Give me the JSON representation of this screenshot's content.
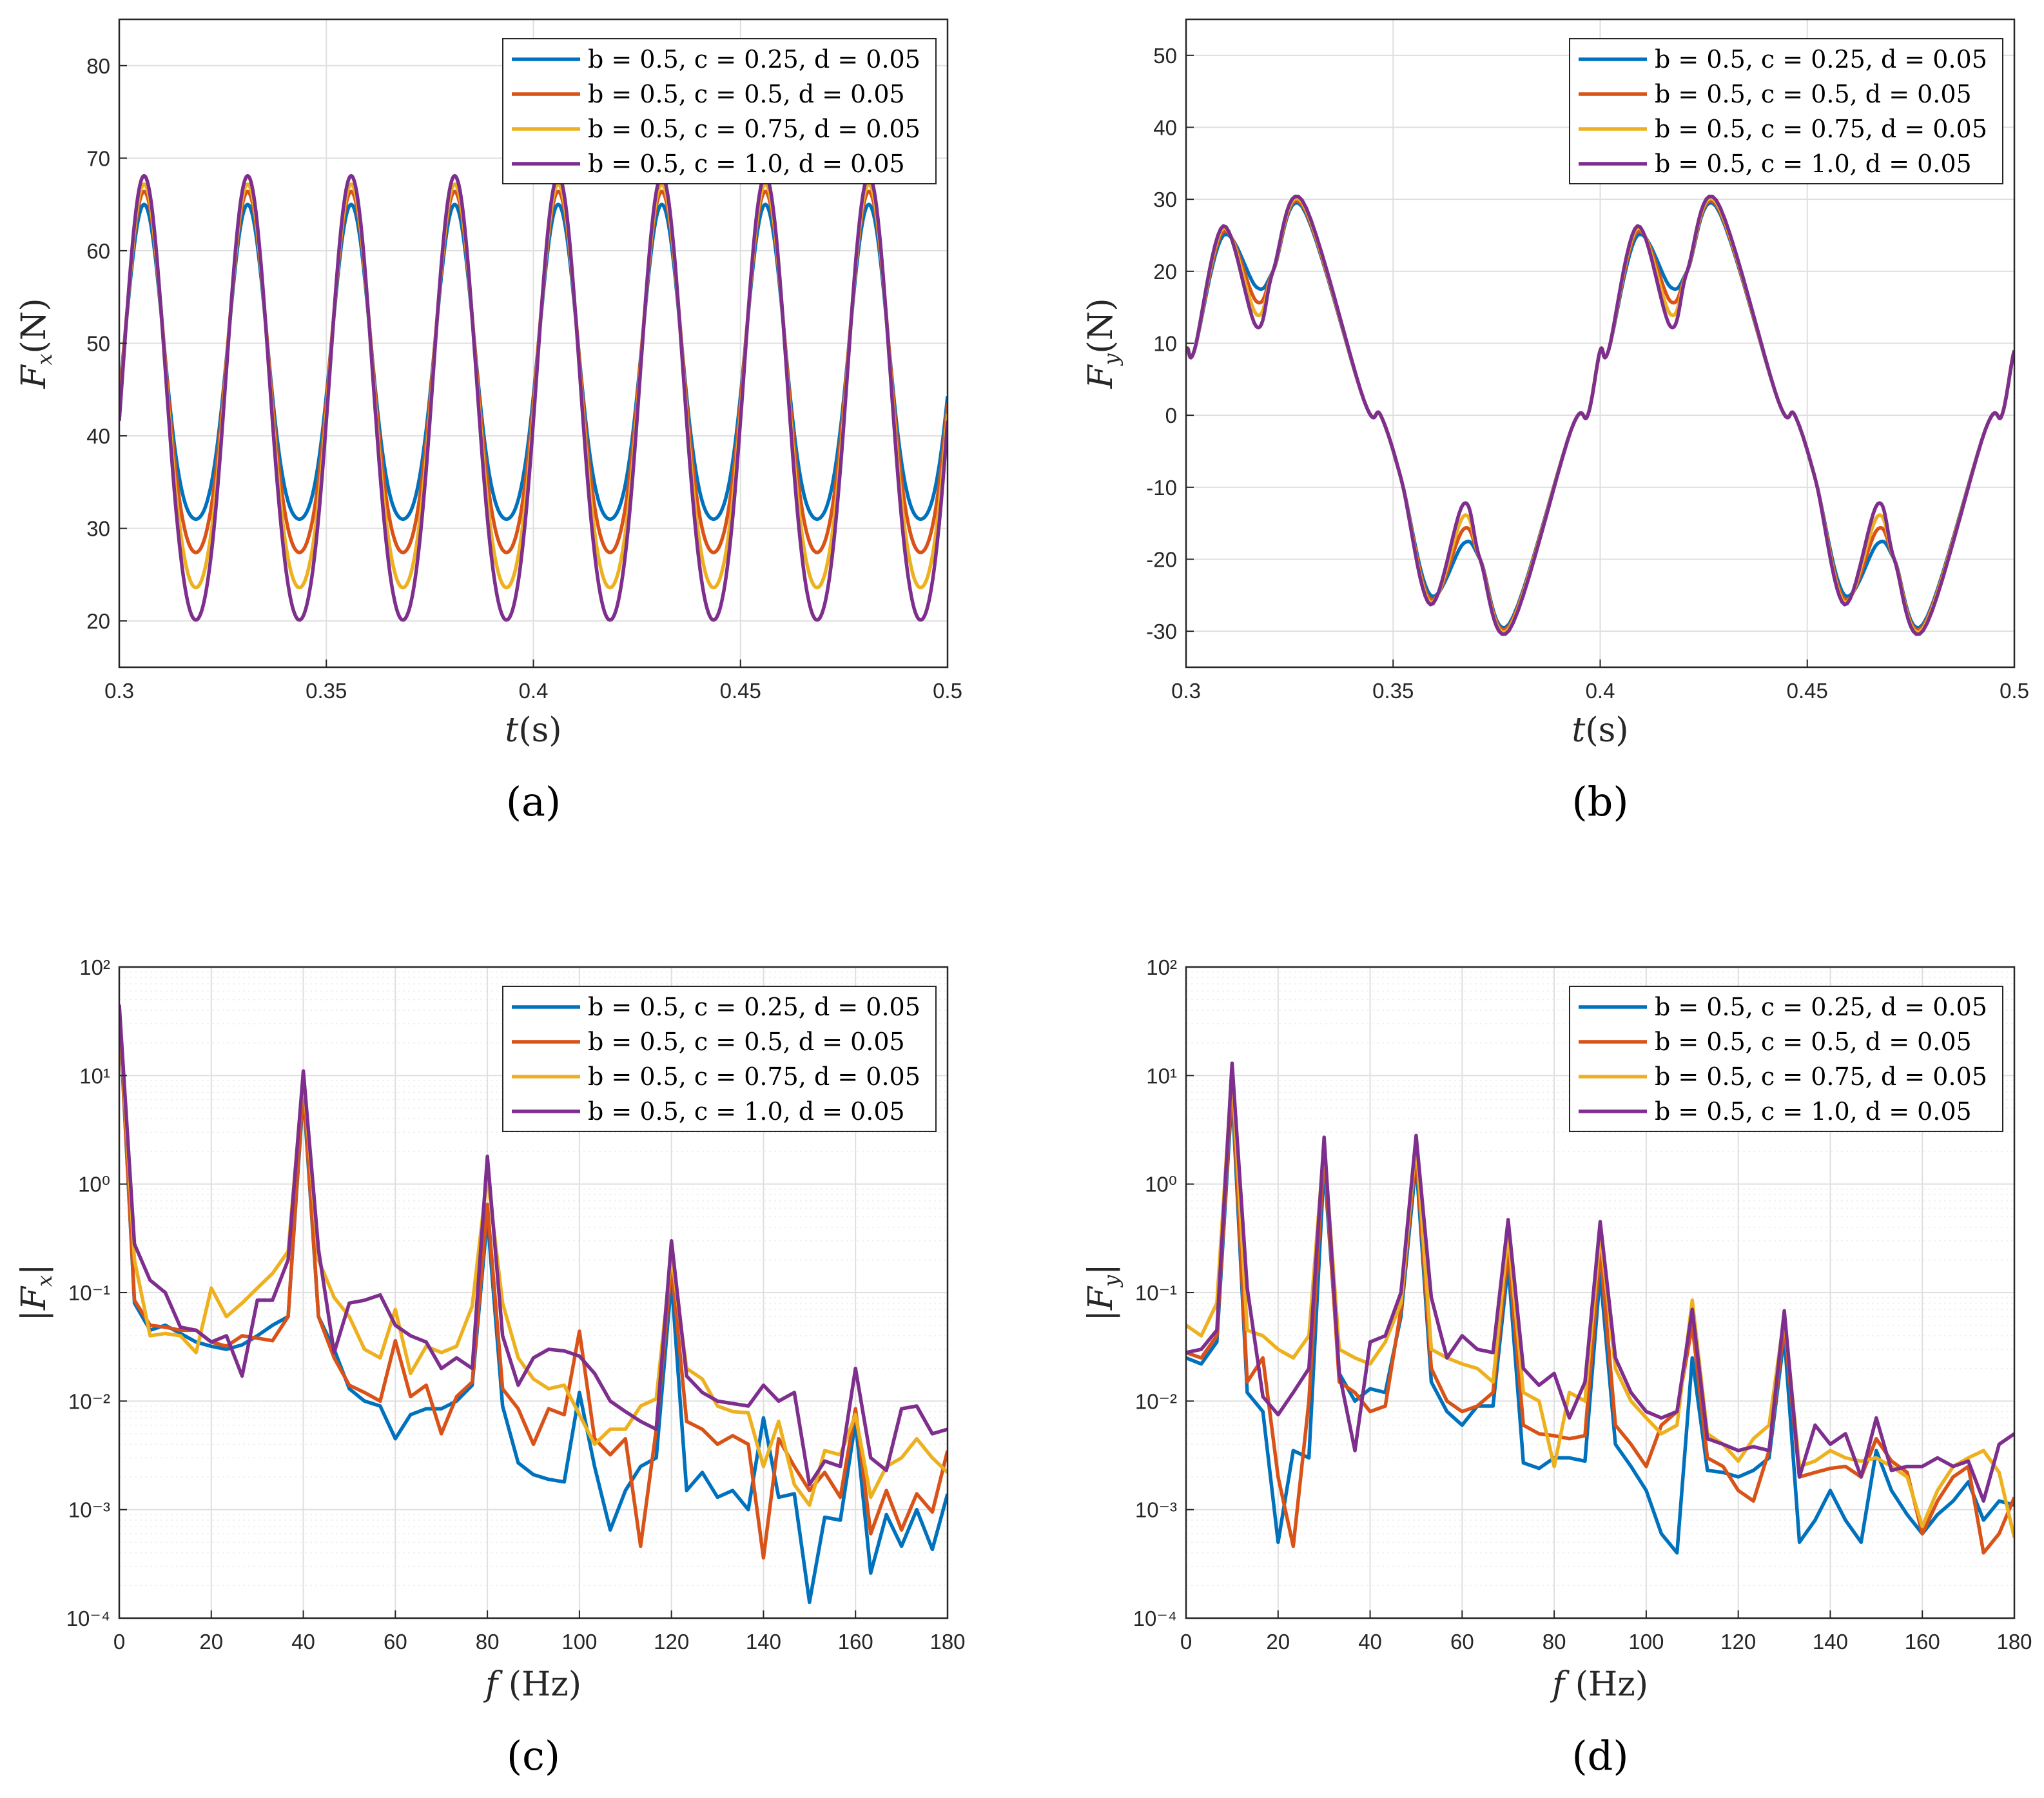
{
  "colors": {
    "series": [
      "#0072BD",
      "#D95319",
      "#EDB120",
      "#7E2F8E"
    ],
    "axis": "#262626",
    "grid": "#dfdfdf"
  },
  "legend_labels": [
    "b = 0.5,  c = 0.25,  d = 0.05",
    "b = 0.5,  c = 0.5,  d = 0.05",
    "b = 0.5,  c = 0.75,  d = 0.05",
    "b = 0.5,  c = 1.0,  d = 0.05"
  ],
  "chart_data": [
    {
      "id": "a",
      "type": "line",
      "panel_label": "(a)",
      "title": "",
      "xlabel": "t(s)",
      "ylabel": "Fx(N)",
      "xlim": [
        0.3,
        0.5
      ],
      "ylim": [
        15,
        85
      ],
      "yscale": "linear",
      "xticks": [
        0.3,
        0.35,
        0.4,
        0.45,
        0.5
      ],
      "xtick_labels": [
        "0.3",
        "0.35",
        "0.4",
        "0.45",
        "0.5"
      ],
      "yticks": [
        20,
        30,
        40,
        50,
        60,
        70,
        80
      ],
      "ytick_labels": [
        "20",
        "30",
        "40",
        "50",
        "60",
        "70",
        "80"
      ],
      "grid": true,
      "legend_position": "top-right",
      "series": [
        {
          "name": "b = 0.5,  c = 0.25,  d = 0.05",
          "mean": 45.6,
          "a1": 17.0,
          "a2": 2.4
        },
        {
          "name": "b = 0.5,  c = 0.5,  d = 0.05",
          "mean": 44.6,
          "a1": 19.5,
          "a2": 2.3
        },
        {
          "name": "b = 0.5,  c = 0.75,  d = 0.05",
          "mean": 43.2,
          "a1": 21.8,
          "a2": 2.2
        },
        {
          "name": "b = 0.5,  c = 1.0,  d = 0.05",
          "mean": 42.1,
          "a1": 24.0,
          "a2": 2.0
        }
      ],
      "period_s": 0.025,
      "phase_s": 0.306
    },
    {
      "id": "b",
      "type": "line",
      "panel_label": "(b)",
      "title": "",
      "xlabel": "t(s)",
      "ylabel": "Fy(N)",
      "xlim": [
        0.3,
        0.5
      ],
      "ylim": [
        -35,
        55
      ],
      "yscale": "linear",
      "xticks": [
        0.3,
        0.35,
        0.4,
        0.45,
        0.5
      ],
      "xtick_labels": [
        "0.3",
        "0.35",
        "0.4",
        "0.45",
        "0.5"
      ],
      "yticks": [
        -30,
        -20,
        -10,
        0,
        10,
        20,
        30,
        40,
        50
      ],
      "ytick_labels": [
        "-30",
        "-20",
        "-10",
        "0",
        "10",
        "20",
        "30",
        "40",
        "50"
      ],
      "grid": true,
      "legend_position": "top-right",
      "series": [
        {
          "name": "b = 0.5,  c = 0.25,  d = 0.05",
          "peaks": [
            [
              0.309,
              25.0
            ],
            [
              0.317,
              17.8
            ],
            [
              0.328,
              29.0
            ],
            [
              0.359,
              -25.0
            ],
            [
              0.367,
              -17.8
            ],
            [
              0.378,
              -29.0
            ]
          ]
        },
        {
          "name": "b = 0.5,  c = 0.5,  d = 0.05",
          "peaks": [
            [
              0.309,
              25.6
            ],
            [
              0.317,
              15.8
            ],
            [
              0.328,
              29.3
            ],
            [
              0.359,
              -25.6
            ],
            [
              0.367,
              -15.8
            ],
            [
              0.378,
              -29.3
            ]
          ]
        },
        {
          "name": "b = 0.5,  c = 0.75,  d = 0.05",
          "peaks": [
            [
              0.309,
              26.0
            ],
            [
              0.317,
              14.0
            ],
            [
              0.328,
              29.6
            ],
            [
              0.359,
              -26.0
            ],
            [
              0.367,
              -14.0
            ],
            [
              0.378,
              -29.6
            ]
          ]
        },
        {
          "name": "b = 0.5,  c = 1.0,  d = 0.05",
          "peaks": [
            [
              0.309,
              26.3
            ],
            [
              0.317,
              12.3
            ],
            [
              0.328,
              29.9
            ],
            [
              0.359,
              -26.3
            ],
            [
              0.367,
              -12.3
            ],
            [
              0.378,
              -29.9
            ]
          ]
        }
      ],
      "period_s": 0.1
    },
    {
      "id": "c",
      "type": "line",
      "panel_label": "(c)",
      "title": "",
      "xlabel": "f (Hz)",
      "ylabel": "|Fx|",
      "xlim": [
        0,
        180
      ],
      "ylim": [
        0.0001,
        100
      ],
      "yscale": "log",
      "xticks": [
        0,
        20,
        40,
        60,
        80,
        100,
        120,
        140,
        160,
        180
      ],
      "xtick_labels": [
        "0",
        "20",
        "40",
        "60",
        "80",
        "100",
        "120",
        "140",
        "160",
        "180"
      ],
      "yticks": [
        0.0001,
        0.001,
        0.01,
        0.1,
        1,
        10,
        100
      ],
      "ytick_labels": [
        "10⁻⁴",
        "10⁻³",
        "10⁻²",
        "10⁻¹",
        "10⁰",
        "10¹",
        "10²"
      ],
      "grid": true,
      "legend_position": "top-right",
      "x": [
        0,
        3.3,
        6.7,
        10,
        13.3,
        16.7,
        20,
        23.3,
        26.7,
        30,
        33.3,
        36.7,
        40,
        43.3,
        46.7,
        50,
        53.3,
        56.7,
        60,
        63.3,
        66.7,
        70,
        73.3,
        76.7,
        80,
        83.3,
        86.7,
        90,
        93.3,
        96.7,
        100,
        103.3,
        106.7,
        110,
        113.3,
        116.7,
        120,
        123.3,
        126.7,
        130,
        133.3,
        136.7,
        140,
        143.3,
        146.7,
        150,
        153.3,
        156.7,
        160,
        163.3,
        166.7,
        170,
        173.3,
        176.7,
        180
      ],
      "series": [
        {
          "name": "b = 0.5,  c = 0.25,  d = 0.05",
          "values": [
            40,
            0.08,
            0.045,
            0.05,
            0.042,
            0.035,
            0.032,
            0.03,
            0.033,
            0.04,
            0.05,
            0.06,
            7,
            0.06,
            0.03,
            0.013,
            0.01,
            0.009,
            0.0045,
            0.0075,
            0.0085,
            0.0085,
            0.01,
            0.014,
            0.5,
            0.009,
            0.0027,
            0.0021,
            0.0019,
            0.0018,
            0.012,
            0.0025,
            0.00065,
            0.0015,
            0.0025,
            0.003,
            0.13,
            0.0015,
            0.0022,
            0.0013,
            0.0015,
            0.001,
            0.007,
            0.0013,
            0.0014,
            0.00014,
            0.00085,
            0.0008,
            0.0065,
            0.00026,
            0.0009,
            0.00046,
            0.001,
            0.00043,
            0.0014
          ]
        },
        {
          "name": "b = 0.5,  c = 0.5,  d = 0.05",
          "values": [
            42,
            0.085,
            0.05,
            0.048,
            0.045,
            0.045,
            0.035,
            0.032,
            0.04,
            0.038,
            0.036,
            0.06,
            8,
            0.06,
            0.025,
            0.014,
            0.012,
            0.01,
            0.036,
            0.011,
            0.014,
            0.005,
            0.011,
            0.015,
            0.65,
            0.013,
            0.0085,
            0.004,
            0.0085,
            0.0075,
            0.044,
            0.0045,
            0.0032,
            0.0045,
            0.00046,
            0.0055,
            0.18,
            0.0065,
            0.0055,
            0.004,
            0.0048,
            0.004,
            0.00036,
            0.0045,
            0.0025,
            0.0015,
            0.0022,
            0.0013,
            0.0085,
            0.0006,
            0.0015,
            0.00065,
            0.0014,
            0.00095,
            0.0035
          ]
        },
        {
          "name": "b = 0.5,  c = 0.75,  d = 0.05",
          "values": [
            44,
            0.2,
            0.04,
            0.042,
            0.04,
            0.028,
            0.11,
            0.06,
            0.08,
            0.11,
            0.15,
            0.24,
            10,
            0.2,
            0.09,
            0.06,
            0.03,
            0.025,
            0.07,
            0.018,
            0.032,
            0.028,
            0.032,
            0.075,
            1.2,
            0.08,
            0.025,
            0.016,
            0.013,
            0.014,
            0.0075,
            0.004,
            0.0055,
            0.0055,
            0.009,
            0.0105,
            0.22,
            0.02,
            0.016,
            0.009,
            0.008,
            0.0078,
            0.0025,
            0.0065,
            0.0017,
            0.0011,
            0.0035,
            0.0032,
            0.0075,
            0.0013,
            0.0025,
            0.003,
            0.0045,
            0.003,
            0.0022
          ]
        },
        {
          "name": "b = 0.5,  c = 1.0,  d = 0.05",
          "values": [
            45,
            0.28,
            0.13,
            0.1,
            0.048,
            0.045,
            0.035,
            0.04,
            0.017,
            0.085,
            0.085,
            0.2,
            11,
            0.25,
            0.028,
            0.08,
            0.085,
            0.095,
            0.05,
            0.04,
            0.035,
            0.02,
            0.025,
            0.02,
            1.8,
            0.04,
            0.014,
            0.025,
            0.03,
            0.029,
            0.026,
            0.018,
            0.01,
            0.008,
            0.0065,
            0.0055,
            0.3,
            0.017,
            0.012,
            0.01,
            0.0095,
            0.009,
            0.014,
            0.01,
            0.012,
            0.0017,
            0.0028,
            0.0025,
            0.02,
            0.003,
            0.0023,
            0.0085,
            0.009,
            0.005,
            0.0055
          ]
        }
      ]
    },
    {
      "id": "d",
      "type": "line",
      "panel_label": "(d)",
      "title": "",
      "xlabel": "f (Hz)",
      "ylabel": "|Fy|",
      "xlim": [
        0,
        180
      ],
      "ylim": [
        0.0001,
        100
      ],
      "yscale": "log",
      "xticks": [
        0,
        20,
        40,
        60,
        80,
        100,
        120,
        140,
        160,
        180
      ],
      "xtick_labels": [
        "0",
        "20",
        "40",
        "60",
        "80",
        "100",
        "120",
        "140",
        "160",
        "180"
      ],
      "yticks": [
        0.0001,
        0.001,
        0.01,
        0.1,
        1,
        10,
        100
      ],
      "ytick_labels": [
        "10⁻⁴",
        "10⁻³",
        "10⁻²",
        "10⁻¹",
        "10⁰",
        "10¹",
        "10²"
      ],
      "grid": true,
      "legend_position": "top-right",
      "x": [
        0,
        3.3,
        6.7,
        10,
        13.3,
        16.7,
        20,
        23.3,
        26.7,
        30,
        33.3,
        36.7,
        40,
        43.3,
        46.7,
        50,
        53.3,
        56.7,
        60,
        63.3,
        66.7,
        70,
        73.3,
        76.7,
        80,
        83.3,
        86.7,
        90,
        93.3,
        96.7,
        100,
        103.3,
        106.7,
        110,
        113.3,
        116.7,
        120,
        123.3,
        126.7,
        130,
        133.3,
        136.7,
        140,
        143.3,
        146.7,
        150,
        153.3,
        156.7,
        160,
        163.3,
        166.7,
        170,
        173.3,
        176.7,
        180
      ],
      "series": [
        {
          "name": "b = 0.5,  c = 0.25,  d = 0.05",
          "values": [
            0.025,
            0.022,
            0.035,
            7,
            0.012,
            0.008,
            0.0005,
            0.0035,
            0.003,
            1.5,
            0.018,
            0.01,
            0.013,
            0.012,
            0.06,
            1.6,
            0.015,
            0.008,
            0.006,
            0.009,
            0.009,
            0.18,
            0.0027,
            0.0024,
            0.003,
            0.003,
            0.0028,
            0.15,
            0.004,
            0.0025,
            0.0015,
            0.0006,
            0.0004,
            0.025,
            0.0023,
            0.0022,
            0.002,
            0.0023,
            0.003,
            0.04,
            0.0005,
            0.0008,
            0.0015,
            0.0008,
            0.0005,
            0.0035,
            0.0015,
            0.0009,
            0.0006,
            0.0009,
            0.0012,
            0.0018,
            0.0008,
            0.0012,
            0.0011
          ]
        },
        {
          "name": "b = 0.5,  c = 0.5,  d = 0.05",
          "values": [
            0.028,
            0.025,
            0.04,
            9,
            0.015,
            0.025,
            0.002,
            0.00046,
            0.01,
            2,
            0.015,
            0.012,
            0.008,
            0.009,
            0.07,
            2,
            0.02,
            0.01,
            0.008,
            0.009,
            0.012,
            0.25,
            0.006,
            0.005,
            0.0048,
            0.0045,
            0.0048,
            0.25,
            0.006,
            0.004,
            0.0025,
            0.006,
            0.008,
            0.05,
            0.003,
            0.0025,
            0.0015,
            0.0012,
            0.0035,
            0.05,
            0.002,
            0.0022,
            0.0024,
            0.0025,
            0.002,
            0.0045,
            0.0028,
            0.0022,
            0.0006,
            0.0012,
            0.002,
            0.0025,
            0.0004,
            0.0006,
            0.0013
          ]
        },
        {
          "name": "b = 0.5,  c = 0.75,  d = 0.05",
          "values": [
            0.05,
            0.04,
            0.08,
            11,
            0.045,
            0.04,
            0.03,
            0.025,
            0.04,
            2.3,
            0.03,
            0.025,
            0.022,
            0.035,
            0.08,
            2.5,
            0.03,
            0.025,
            0.022,
            0.02,
            0.015,
            0.35,
            0.012,
            0.01,
            0.0025,
            0.012,
            0.01,
            0.35,
            0.02,
            0.01,
            0.007,
            0.005,
            0.006,
            0.085,
            0.005,
            0.004,
            0.0028,
            0.0045,
            0.006,
            0.06,
            0.0025,
            0.0028,
            0.0035,
            0.003,
            0.0028,
            0.003,
            0.0025,
            0.002,
            0.0007,
            0.0015,
            0.0025,
            0.003,
            0.0035,
            0.0022,
            0.00055
          ]
        },
        {
          "name": "b = 0.5,  c = 1.0,  d = 0.05",
          "values": [
            0.028,
            0.03,
            0.045,
            13,
            0.11,
            0.011,
            0.0075,
            0.012,
            0.02,
            2.7,
            0.018,
            0.0035,
            0.035,
            0.04,
            0.1,
            2.8,
            0.09,
            0.025,
            0.04,
            0.03,
            0.028,
            0.47,
            0.02,
            0.014,
            0.018,
            0.007,
            0.015,
            0.45,
            0.025,
            0.012,
            0.008,
            0.007,
            0.008,
            0.07,
            0.0045,
            0.004,
            0.0035,
            0.0038,
            0.0035,
            0.068,
            0.002,
            0.006,
            0.004,
            0.005,
            0.002,
            0.007,
            0.0023,
            0.0025,
            0.0025,
            0.003,
            0.0025,
            0.0028,
            0.0012,
            0.004,
            0.005
          ]
        }
      ]
    }
  ]
}
